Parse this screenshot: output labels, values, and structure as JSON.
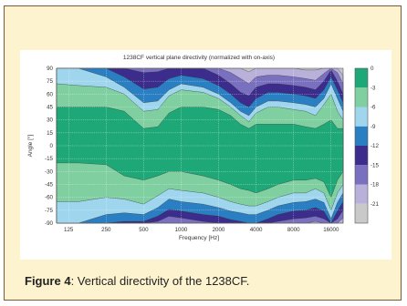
{
  "figure": {
    "caption_lead": "Figure 4",
    "caption_rest": ": Vertical directivity of the 1238CF."
  },
  "chart_data": {
    "type": "heatmap",
    "title": "1238CF vertical plane directivity (normalized with on-axis)",
    "xlabel": "Frequency [Hz]",
    "ylabel": "Angle [°]",
    "x_scale": "log",
    "xlim": [
      100,
      20000
    ],
    "ylim": [
      -90,
      90
    ],
    "x_ticks": [
      {
        "value": 125,
        "label": "125"
      },
      {
        "value": 250,
        "label": "250"
      },
      {
        "value": 500,
        "label": "500"
      },
      {
        "value": 1000,
        "label": "1000"
      },
      {
        "value": 2000,
        "label": "2000"
      },
      {
        "value": 4000,
        "label": "4000"
      },
      {
        "value": 8000,
        "label": "8000"
      },
      {
        "value": 16000,
        "label": "16000"
      }
    ],
    "y_ticks": [
      {
        "value": 90,
        "label": "90"
      },
      {
        "value": 75,
        "label": "75"
      },
      {
        "value": 60,
        "label": "60"
      },
      {
        "value": 45,
        "label": "45"
      },
      {
        "value": 30,
        "label": "30"
      },
      {
        "value": 15,
        "label": "15"
      },
      {
        "value": 0,
        "label": "0"
      },
      {
        "value": -15,
        "label": "-15"
      },
      {
        "value": -30,
        "label": "-30"
      },
      {
        "value": -45,
        "label": "-45"
      },
      {
        "value": -60,
        "label": "-60"
      },
      {
        "value": -75,
        "label": "-75"
      },
      {
        "value": -90,
        "label": "-90"
      }
    ],
    "grid": true,
    "colorbar": {
      "range": [
        -21,
        0
      ],
      "ticks": [
        {
          "value": 0,
          "label": "0"
        },
        {
          "value": -3,
          "label": "-3"
        },
        {
          "value": -6,
          "label": "-6"
        },
        {
          "value": -9,
          "label": "-9"
        },
        {
          "value": -12,
          "label": "-12"
        },
        {
          "value": -15,
          "label": "-15"
        },
        {
          "value": -18,
          "label": "-18"
        },
        {
          "value": -21,
          "label": "-21"
        }
      ],
      "bands": [
        {
          "level": "0 to -3",
          "color": "#1fa877"
        },
        {
          "level": "-3 to -6",
          "color": "#7fcfa0"
        },
        {
          "level": "-6 to -9",
          "color": "#9fd6ee"
        },
        {
          "level": "-9 to -12",
          "color": "#2a7ec2"
        },
        {
          "level": "-12 to -15",
          "color": "#3c2c8c"
        },
        {
          "level": "-15 to -18",
          "color": "#7a70c0"
        },
        {
          "level": "-18 to -21",
          "color": "#b9b1da"
        },
        {
          "level": "below -21",
          "color": "#c9c9c9"
        }
      ]
    },
    "upper_boundaries": [
      {
        "band": "0 to -3",
        "points": [
          [
            100,
            45
          ],
          [
            125,
            45
          ],
          [
            250,
            45
          ],
          [
            350,
            40
          ],
          [
            500,
            20
          ],
          [
            650,
            22
          ],
          [
            800,
            38
          ],
          [
            1000,
            45
          ],
          [
            1500,
            45
          ],
          [
            2000,
            42
          ],
          [
            2500,
            35
          ],
          [
            3000,
            25
          ],
          [
            3500,
            20
          ],
          [
            4000,
            25
          ],
          [
            5000,
            25
          ],
          [
            6000,
            25
          ],
          [
            8000,
            25
          ],
          [
            10000,
            22
          ],
          [
            12000,
            20
          ],
          [
            14000,
            25
          ],
          [
            16000,
            30
          ],
          [
            18000,
            20
          ],
          [
            20000,
            20
          ]
        ]
      },
      {
        "band": "-3 to -6",
        "points": [
          [
            100,
            72
          ],
          [
            150,
            70
          ],
          [
            250,
            68
          ],
          [
            350,
            60
          ],
          [
            500,
            40
          ],
          [
            650,
            42
          ],
          [
            800,
            58
          ],
          [
            1000,
            65
          ],
          [
            1500,
            62
          ],
          [
            2000,
            55
          ],
          [
            2500,
            45
          ],
          [
            3000,
            35
          ],
          [
            3500,
            28
          ],
          [
            4000,
            38
          ],
          [
            5000,
            45
          ],
          [
            6000,
            45
          ],
          [
            8000,
            42
          ],
          [
            10000,
            40
          ],
          [
            12000,
            35
          ],
          [
            14000,
            48
          ],
          [
            16000,
            60
          ],
          [
            18000,
            40
          ],
          [
            20000,
            30
          ]
        ]
      },
      {
        "band": "-6 to -9",
        "points": [
          [
            100,
            90
          ],
          [
            150,
            90
          ],
          [
            250,
            80
          ],
          [
            350,
            68
          ],
          [
            500,
            50
          ],
          [
            650,
            52
          ],
          [
            800,
            65
          ],
          [
            1000,
            72
          ],
          [
            1500,
            68
          ],
          [
            2000,
            60
          ],
          [
            2500,
            50
          ],
          [
            3000,
            40
          ],
          [
            3500,
            35
          ],
          [
            4000,
            45
          ],
          [
            5000,
            52
          ],
          [
            6000,
            52
          ],
          [
            8000,
            50
          ],
          [
            10000,
            48
          ],
          [
            12000,
            45
          ],
          [
            14000,
            55
          ],
          [
            16000,
            72
          ],
          [
            18000,
            55
          ],
          [
            20000,
            40
          ]
        ]
      },
      {
        "band": "-9 to -12",
        "points": [
          [
            100,
            90
          ],
          [
            150,
            90
          ],
          [
            250,
            90
          ],
          [
            350,
            80
          ],
          [
            500,
            66
          ],
          [
            650,
            68
          ],
          [
            800,
            78
          ],
          [
            1000,
            82
          ],
          [
            1500,
            78
          ],
          [
            2000,
            70
          ],
          [
            2500,
            60
          ],
          [
            3000,
            50
          ],
          [
            3500,
            45
          ],
          [
            4000,
            55
          ],
          [
            5000,
            62
          ],
          [
            6000,
            62
          ],
          [
            8000,
            60
          ],
          [
            10000,
            58
          ],
          [
            12000,
            55
          ],
          [
            14000,
            65
          ],
          [
            16000,
            80
          ],
          [
            18000,
            65
          ],
          [
            20000,
            50
          ]
        ]
      },
      {
        "band": "-12 to -15",
        "points": [
          [
            100,
            90
          ],
          [
            250,
            90
          ],
          [
            350,
            90
          ],
          [
            500,
            85
          ],
          [
            650,
            86
          ],
          [
            800,
            90
          ],
          [
            1000,
            90
          ],
          [
            1500,
            90
          ],
          [
            2000,
            82
          ],
          [
            2500,
            72
          ],
          [
            3000,
            62
          ],
          [
            3500,
            58
          ],
          [
            4000,
            68
          ],
          [
            5000,
            72
          ],
          [
            6000,
            72
          ],
          [
            8000,
            70
          ],
          [
            10000,
            68
          ],
          [
            12000,
            65
          ],
          [
            14000,
            75
          ],
          [
            16000,
            88
          ],
          [
            18000,
            75
          ],
          [
            20000,
            60
          ]
        ]
      },
      {
        "band": "-15 to -18",
        "points": [
          [
            100,
            90
          ],
          [
            2000,
            90
          ],
          [
            2500,
            85
          ],
          [
            3000,
            78
          ],
          [
            3500,
            72
          ],
          [
            4000,
            80
          ],
          [
            5000,
            82
          ],
          [
            6000,
            82
          ],
          [
            8000,
            80
          ],
          [
            10000,
            78
          ],
          [
            12000,
            76
          ],
          [
            14000,
            84
          ],
          [
            16000,
            90
          ],
          [
            18000,
            85
          ],
          [
            20000,
            72
          ]
        ]
      },
      {
        "band": "-18 to -21",
        "points": [
          [
            100,
            90
          ],
          [
            3000,
            90
          ],
          [
            3500,
            86
          ],
          [
            4000,
            90
          ],
          [
            8000,
            90
          ],
          [
            10000,
            88
          ],
          [
            12000,
            88
          ],
          [
            14000,
            90
          ],
          [
            18000,
            90
          ],
          [
            20000,
            82
          ]
        ]
      }
    ],
    "lower_boundaries": [
      {
        "band": "0 to -3",
        "points": [
          [
            100,
            -20
          ],
          [
            150,
            -20
          ],
          [
            250,
            -22
          ],
          [
            350,
            -35
          ],
          [
            500,
            -40
          ],
          [
            650,
            -35
          ],
          [
            800,
            -30
          ],
          [
            1000,
            -30
          ],
          [
            1500,
            -35
          ],
          [
            2000,
            -40
          ],
          [
            2500,
            -45
          ],
          [
            3000,
            -50
          ],
          [
            3500,
            -52
          ],
          [
            4000,
            -55
          ],
          [
            5000,
            -50
          ],
          [
            6000,
            -45
          ],
          [
            8000,
            -40
          ],
          [
            10000,
            -40
          ],
          [
            12000,
            -38
          ],
          [
            14000,
            -42
          ],
          [
            16000,
            -60
          ],
          [
            18000,
            -40
          ],
          [
            20000,
            -30
          ]
        ]
      },
      {
        "band": "-3 to -6",
        "points": [
          [
            100,
            -65
          ],
          [
            150,
            -65
          ],
          [
            250,
            -60
          ],
          [
            350,
            -62
          ],
          [
            500,
            -68
          ],
          [
            650,
            -58
          ],
          [
            800,
            -50
          ],
          [
            1000,
            -52
          ],
          [
            1500,
            -55
          ],
          [
            2000,
            -60
          ],
          [
            2500,
            -65
          ],
          [
            3000,
            -68
          ],
          [
            3500,
            -70
          ],
          [
            4000,
            -70
          ],
          [
            5000,
            -65
          ],
          [
            6000,
            -60
          ],
          [
            8000,
            -55
          ],
          [
            10000,
            -55
          ],
          [
            12000,
            -50
          ],
          [
            14000,
            -55
          ],
          [
            16000,
            -75
          ],
          [
            18000,
            -55
          ],
          [
            20000,
            -45
          ]
        ]
      },
      {
        "band": "-6 to -9",
        "points": [
          [
            100,
            -90
          ],
          [
            150,
            -90
          ],
          [
            250,
            -80
          ],
          [
            350,
            -78
          ],
          [
            500,
            -80
          ],
          [
            650,
            -72
          ],
          [
            800,
            -62
          ],
          [
            1000,
            -65
          ],
          [
            1500,
            -68
          ],
          [
            2000,
            -72
          ],
          [
            2500,
            -76
          ],
          [
            3000,
            -78
          ],
          [
            3500,
            -80
          ],
          [
            4000,
            -80
          ],
          [
            5000,
            -75
          ],
          [
            6000,
            -70
          ],
          [
            8000,
            -66
          ],
          [
            10000,
            -65
          ],
          [
            12000,
            -62
          ],
          [
            14000,
            -66
          ],
          [
            16000,
            -85
          ],
          [
            18000,
            -66
          ],
          [
            20000,
            -55
          ]
        ]
      },
      {
        "band": "-9 to -12",
        "points": [
          [
            100,
            -90
          ],
          [
            250,
            -90
          ],
          [
            350,
            -88
          ],
          [
            500,
            -88
          ],
          [
            650,
            -82
          ],
          [
            800,
            -74
          ],
          [
            1000,
            -76
          ],
          [
            1500,
            -80
          ],
          [
            2000,
            -82
          ],
          [
            2500,
            -86
          ],
          [
            3000,
            -88
          ],
          [
            3500,
            -90
          ],
          [
            4000,
            -90
          ],
          [
            5000,
            -85
          ],
          [
            6000,
            -80
          ],
          [
            8000,
            -76
          ],
          [
            10000,
            -75
          ],
          [
            12000,
            -72
          ],
          [
            14000,
            -76
          ],
          [
            16000,
            -90
          ],
          [
            18000,
            -76
          ],
          [
            20000,
            -65
          ]
        ]
      },
      {
        "band": "-12 to -15",
        "points": [
          [
            100,
            -90
          ],
          [
            500,
            -90
          ],
          [
            650,
            -88
          ],
          [
            800,
            -82
          ],
          [
            1000,
            -84
          ],
          [
            1500,
            -88
          ],
          [
            2000,
            -90
          ],
          [
            5000,
            -90
          ],
          [
            6000,
            -88
          ],
          [
            8000,
            -85
          ],
          [
            10000,
            -84
          ],
          [
            12000,
            -82
          ],
          [
            14000,
            -85
          ],
          [
            16000,
            -90
          ],
          [
            18000,
            -85
          ],
          [
            20000,
            -75
          ]
        ]
      },
      {
        "band": "-15 to -18",
        "points": [
          [
            100,
            -90
          ],
          [
            800,
            -90
          ],
          [
            1000,
            -90
          ],
          [
            8000,
            -90
          ],
          [
            10000,
            -90
          ],
          [
            12000,
            -88
          ],
          [
            14000,
            -90
          ],
          [
            18000,
            -90
          ],
          [
            20000,
            -84
          ]
        ]
      }
    ]
  }
}
